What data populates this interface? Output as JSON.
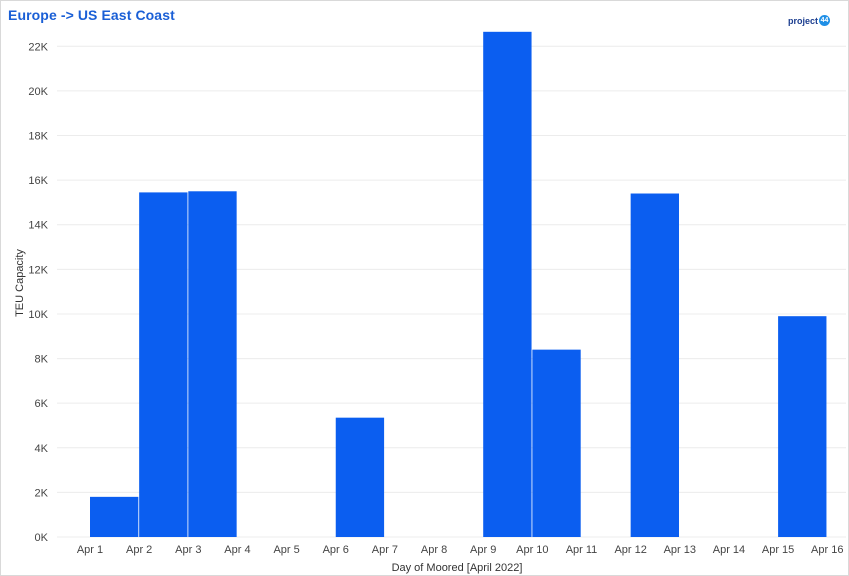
{
  "header": {
    "title": "Europe -> US East Coast",
    "logo_text": "project",
    "logo_badge": "44"
  },
  "colors": {
    "bar": "#0b5ef0",
    "title": "#1a5fd6",
    "grid": "#ececec",
    "axis_text": "#444444"
  },
  "chart_data": {
    "type": "bar",
    "xlabel": "Day of Moored [April 2022]",
    "ylabel": "TEU Capacity",
    "ylim": [
      0,
      23000
    ],
    "y_ticks": [
      "0K",
      "2K",
      "4K",
      "6K",
      "8K",
      "10K",
      "12K",
      "14K",
      "16K",
      "18K",
      "20K",
      "22K"
    ],
    "y_tick_values": [
      0,
      2000,
      4000,
      6000,
      8000,
      10000,
      12000,
      14000,
      16000,
      18000,
      20000,
      22000
    ],
    "x_ticks": [
      "Apr 1",
      "Apr 2",
      "Apr 3",
      "Apr 4",
      "Apr 5",
      "Apr 6",
      "Apr 7",
      "Apr 8",
      "Apr 9",
      "Apr 10",
      "Apr 11",
      "Apr 12",
      "Apr 13",
      "Apr 14",
      "Apr 15",
      "Apr 16"
    ],
    "bars": [
      {
        "start": "Apr 1",
        "end": "Apr 2",
        "value": 1800
      },
      {
        "start": "Apr 2",
        "end": "Apr 3",
        "value": 15450
      },
      {
        "start": "Apr 3",
        "end": "Apr 4",
        "value": 15500
      },
      {
        "start": "Apr 6",
        "end": "Apr 7",
        "value": 5350
      },
      {
        "start": "Apr 9",
        "end": "Apr 10",
        "value": 22650
      },
      {
        "start": "Apr 10",
        "end": "Apr 11",
        "value": 8400
      },
      {
        "start": "Apr 12",
        "end": "Apr 13",
        "value": 15400
      },
      {
        "start": "Apr 15",
        "end": "Apr 16",
        "value": 9900
      }
    ],
    "grid": true,
    "legend": "none"
  }
}
